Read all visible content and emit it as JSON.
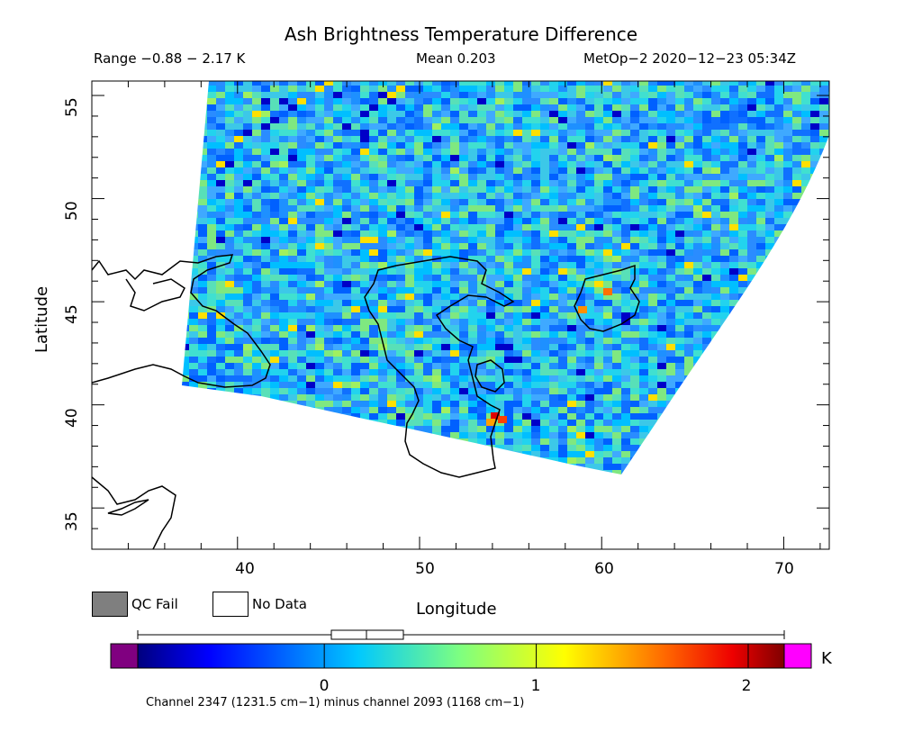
{
  "header": {
    "title": "Ash Brightness Temperature Difference",
    "range": "Range −0.88 − 2.17 K",
    "mean": "Mean 0.203",
    "satellite_time": "MetOp−2 2020−12−23 05:34Z"
  },
  "map": {
    "xlabel": "Longitude",
    "ylabel": "Latitude",
    "x_ticks": [
      "40",
      "50",
      "60",
      "70"
    ],
    "y_ticks": [
      "35",
      "40",
      "45",
      "50",
      "55"
    ],
    "lon_range": [
      32,
      72.5
    ],
    "lat_range": [
      33,
      55.7
    ]
  },
  "legend": {
    "qc_fail": "QC Fail",
    "no_data": "No Data",
    "qc_fail_color": "#7f7f7f",
    "no_data_color": "#ffffff"
  },
  "colorbar": {
    "ticks": [
      "0",
      "1",
      "2"
    ],
    "tick_values": [
      0,
      1,
      2
    ],
    "range": [
      -0.88,
      2.17
    ],
    "unit": "K",
    "under_color": "#800080",
    "over_color": "#ff00ff",
    "caption": "Channel 2347 (1231.5 cm−1) minus channel 2093 (1168 cm−1)"
  }
}
